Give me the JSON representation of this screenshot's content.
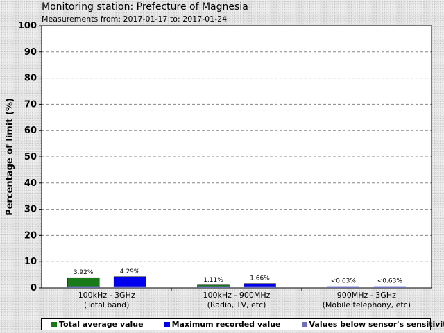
{
  "header": {
    "title": "Monitoring station: Prefecture of Magnesia",
    "subtitle": "Measurements from: 2017-01-17 to: 2017-01-24"
  },
  "chart_data": {
    "type": "bar",
    "ylabel": "Percentage of limit (%)",
    "ylim": [
      0,
      100
    ],
    "yticks": [
      0,
      10,
      20,
      30,
      40,
      50,
      60,
      70,
      80,
      90,
      100
    ],
    "grid": true,
    "legend_position": "bottom",
    "categories": [
      [
        "100kHz - 3GHz",
        "(Total band)"
      ],
      [
        "100kHz - 900MHz",
        "(Radio, TV, etc)"
      ],
      [
        "900MHz - 3GHz",
        "(Mobile telephony, etc)"
      ]
    ],
    "series": [
      {
        "name": "Total average value",
        "color": "#1a7a1a",
        "values": [
          3.92,
          1.11,
          0.63
        ],
        "labels": [
          "3.92%",
          "1.11%",
          "<0.63%"
        ]
      },
      {
        "name": "Maximum recorded value",
        "color": "#0000ee",
        "values": [
          4.29,
          1.66,
          0.63
        ],
        "labels": [
          "4.29%",
          "1.66%",
          "<0.63%"
        ]
      }
    ],
    "sensitivity_floor": {
      "name": "Values below sensor's sensitivity",
      "color": "#7070b8",
      "value": 0.63
    }
  }
}
